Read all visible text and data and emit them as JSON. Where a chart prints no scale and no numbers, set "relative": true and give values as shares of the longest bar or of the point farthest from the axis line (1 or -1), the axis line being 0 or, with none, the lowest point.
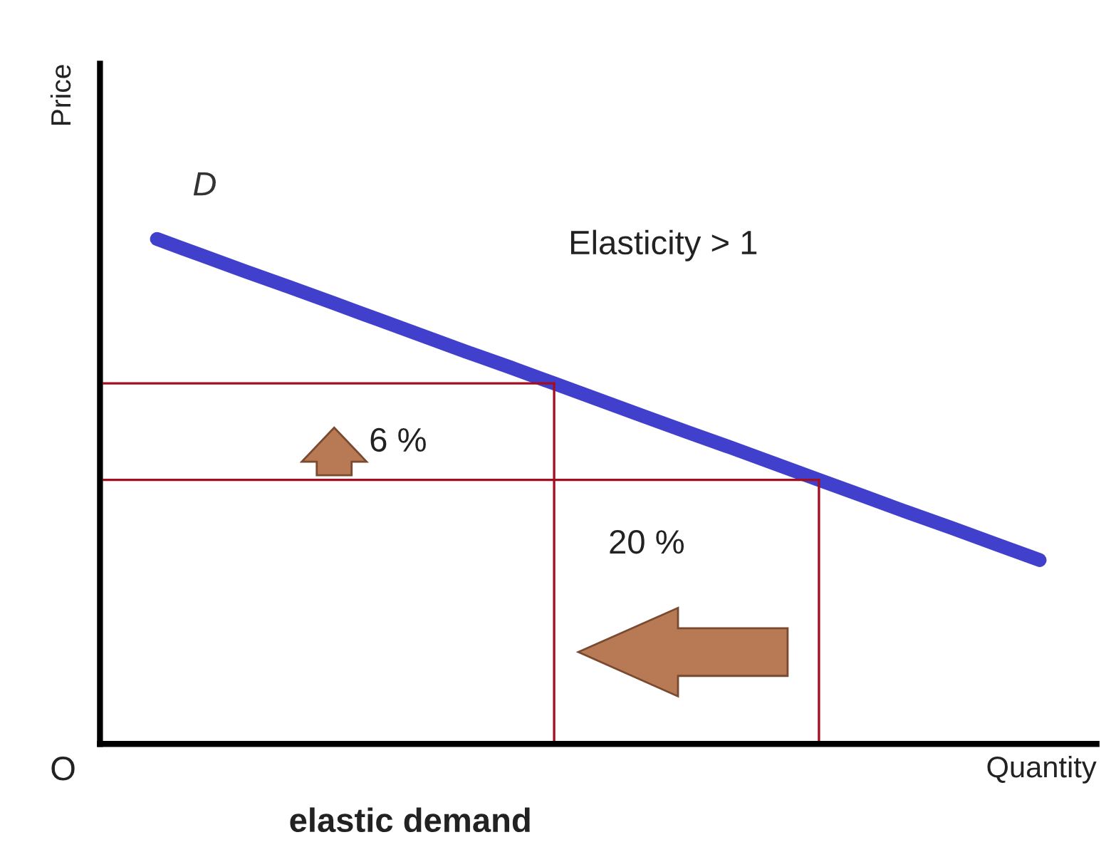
{
  "chart_data": {
    "type": "line",
    "relative": true,
    "xlabel": "Quantity",
    "ylabel": "Price",
    "categories": [
      null,
      null,
      null,
      null,
      null,
      null,
      null,
      null,
      null,
      null,
      null,
      null,
      null,
      null,
      null,
      null,
      null,
      null,
      null,
      null,
      null
    ],
    "series": [
      {
        "color": "#4040cc",
        "values": [
          1.0,
          0.968,
          0.936,
          0.905,
          0.873,
          0.841,
          0.809,
          0.777,
          0.746,
          0.714,
          0.682,
          0.65,
          0.618,
          0.587,
          0.555,
          0.523,
          0.491,
          0.459,
          0.428,
          0.396,
          0.364
        ]
      }
    ],
    "ref_lines": [
      {
        "axis": "y",
        "value": 0.714,
        "color": "#a01020"
      },
      {
        "axis": "y",
        "value": 0.523,
        "color": "#a01020"
      }
    ],
    "annotations": [
      "D",
      "Elasticity > 1",
      "6 %",
      "20 %",
      "O",
      "elastic demand"
    ]
  }
}
